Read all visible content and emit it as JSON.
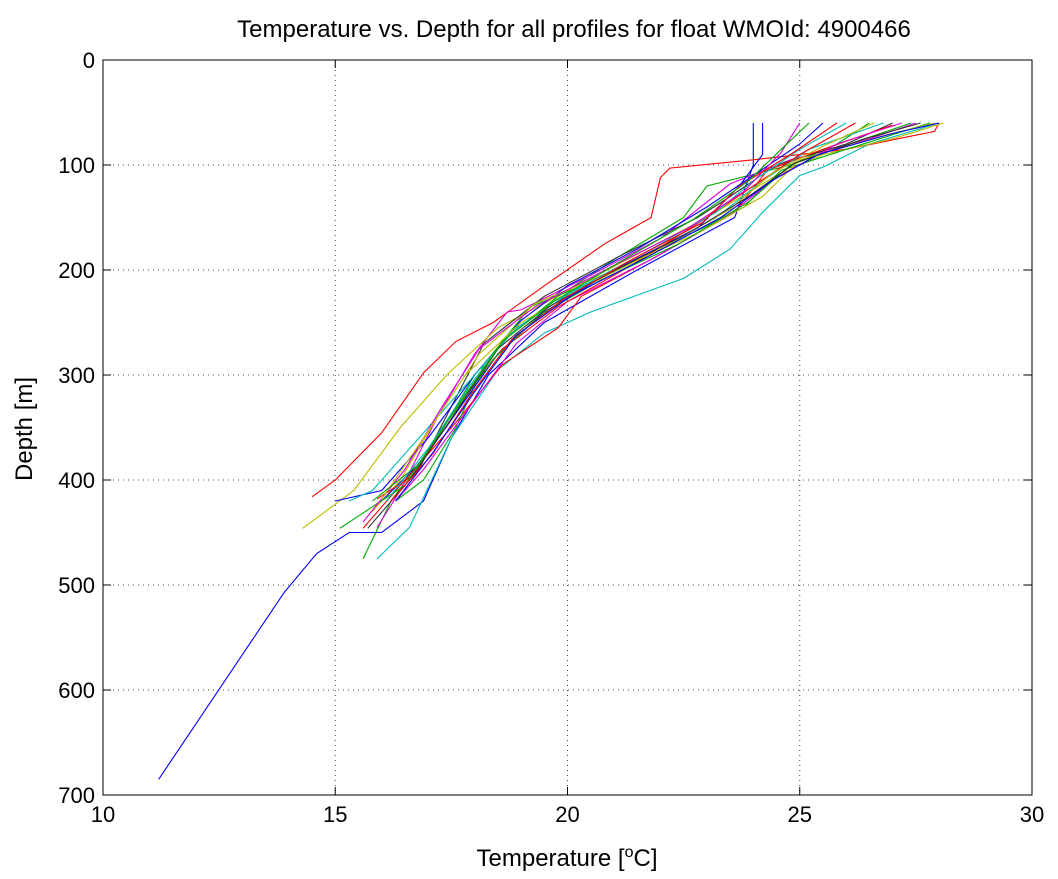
{
  "chart_data": {
    "type": "line",
    "title": "Temperature vs. Depth for all profiles for float WMOId: 4900466",
    "xlabel_prefix": "Temperature [",
    "xlabel_sup": "o",
    "xlabel_suffix": "C]",
    "ylabel": "Depth [m]",
    "xlim": [
      10,
      30
    ],
    "ylim": [
      0,
      700
    ],
    "y_reversed": true,
    "xticks": [
      10,
      15,
      20,
      25,
      30
    ],
    "yticks": [
      0,
      100,
      200,
      300,
      400,
      500,
      600,
      700
    ],
    "grid": true,
    "legend": "none",
    "series": [
      {
        "color": "#0000ff",
        "points": [
          [
            24.0,
            60
          ],
          [
            24.0,
            100
          ],
          [
            23.6,
            150
          ],
          [
            21.5,
            200
          ],
          [
            19.5,
            250
          ],
          [
            18.3,
            300
          ],
          [
            17.5,
            360
          ],
          [
            16.9,
            420
          ],
          [
            16.0,
            450
          ],
          [
            15.3,
            450
          ],
          [
            14.6,
            470
          ],
          [
            13.9,
            507
          ],
          [
            11.2,
            685
          ]
        ]
      },
      {
        "color": "#ff0000",
        "points": [
          [
            28.0,
            60
          ],
          [
            27.9,
            68
          ],
          [
            26.0,
            85
          ],
          [
            24.0,
            95
          ],
          [
            22.2,
            103
          ],
          [
            22.0,
            112
          ],
          [
            21.8,
            150
          ],
          [
            20.8,
            175
          ],
          [
            19.5,
            215
          ],
          [
            18.4,
            250
          ],
          [
            17.6,
            268
          ],
          [
            16.9,
            298
          ],
          [
            16.0,
            355
          ],
          [
            15.0,
            400
          ],
          [
            14.5,
            416
          ]
        ]
      },
      {
        "color": "#00aa00",
        "points": [
          [
            26.5,
            60
          ],
          [
            25.8,
            80
          ],
          [
            24.8,
            100
          ],
          [
            23.0,
            120
          ],
          [
            22.5,
            150
          ],
          [
            21.0,
            190
          ],
          [
            19.8,
            225
          ],
          [
            18.8,
            260
          ],
          [
            18.0,
            300
          ],
          [
            17.2,
            360
          ],
          [
            16.2,
            420
          ],
          [
            15.6,
            475
          ]
        ]
      },
      {
        "color": "#00bbbb",
        "points": [
          [
            28.0,
            60
          ],
          [
            26.5,
            80
          ],
          [
            25.5,
            102
          ],
          [
            25.0,
            110
          ],
          [
            24.2,
            145
          ],
          [
            23.5,
            180
          ],
          [
            22.5,
            208
          ],
          [
            20.5,
            240
          ],
          [
            19.5,
            260
          ],
          [
            18.5,
            295
          ],
          [
            17.5,
            360
          ],
          [
            16.6,
            445
          ],
          [
            15.9,
            475
          ]
        ]
      },
      {
        "color": "#dd00dd",
        "points": [
          [
            27.5,
            60
          ],
          [
            26.5,
            75
          ],
          [
            24.8,
            95
          ],
          [
            23.5,
            118
          ],
          [
            22.0,
            170
          ],
          [
            20.5,
            205
          ],
          [
            19.0,
            238
          ],
          [
            18.7,
            240
          ],
          [
            18.0,
            280
          ],
          [
            17.2,
            340
          ],
          [
            16.4,
            410
          ],
          [
            15.9,
            445
          ]
        ]
      },
      {
        "color": "#bbbb00",
        "points": [
          [
            28.1,
            60
          ],
          [
            27.0,
            75
          ],
          [
            25.5,
            90
          ],
          [
            24.5,
            110
          ],
          [
            23.0,
            150
          ],
          [
            21.5,
            185
          ],
          [
            20.0,
            220
          ],
          [
            18.5,
            255
          ],
          [
            17.4,
            300
          ],
          [
            16.4,
            350
          ],
          [
            15.4,
            410
          ],
          [
            14.3,
            446
          ]
        ]
      },
      {
        "color": "#333333",
        "points": [
          [
            27.0,
            60
          ],
          [
            26.0,
            80
          ],
          [
            24.5,
            100
          ],
          [
            23.5,
            130
          ],
          [
            22.8,
            150
          ],
          [
            21.2,
            185
          ],
          [
            19.5,
            225
          ],
          [
            18.2,
            270
          ],
          [
            17.5,
            330
          ],
          [
            16.8,
            390
          ],
          [
            16.2,
            420
          ]
        ]
      },
      {
        "color": "#0000ff",
        "points": [
          [
            25.5,
            60
          ],
          [
            25.0,
            80
          ],
          [
            24.0,
            110
          ],
          [
            23.0,
            140
          ],
          [
            21.5,
            180
          ],
          [
            20.0,
            215
          ],
          [
            19.0,
            248
          ],
          [
            18.0,
            300
          ],
          [
            17.0,
            360
          ],
          [
            16.0,
            410
          ],
          [
            15.0,
            420
          ]
        ]
      },
      {
        "color": "#ff0000",
        "points": [
          [
            27.0,
            62
          ],
          [
            25.5,
            85
          ],
          [
            24.3,
            105
          ],
          [
            23.6,
            145
          ],
          [
            21.8,
            190
          ],
          [
            20.3,
            225
          ],
          [
            19.8,
            255
          ],
          [
            18.6,
            290
          ],
          [
            17.6,
            345
          ],
          [
            16.5,
            400
          ],
          [
            15.6,
            446
          ]
        ]
      },
      {
        "color": "#00aa00",
        "points": [
          [
            27.8,
            60
          ],
          [
            26.0,
            85
          ],
          [
            24.6,
            105
          ],
          [
            23.8,
            140
          ],
          [
            22.0,
            180
          ],
          [
            20.6,
            210
          ],
          [
            19.2,
            235
          ],
          [
            18.2,
            290
          ],
          [
            17.6,
            350
          ],
          [
            16.9,
            400
          ],
          [
            16.3,
            420
          ]
        ]
      },
      {
        "color": "#00bbbb",
        "points": [
          [
            26.8,
            60
          ],
          [
            25.2,
            85
          ],
          [
            24.2,
            115
          ],
          [
            23.2,
            150
          ],
          [
            21.5,
            190
          ],
          [
            19.7,
            230
          ],
          [
            18.8,
            260
          ],
          [
            17.8,
            310
          ],
          [
            16.8,
            360
          ],
          [
            15.8,
            410
          ],
          [
            15.3,
            420
          ]
        ]
      },
      {
        "color": "#dd00dd",
        "points": [
          [
            27.2,
            60
          ],
          [
            25.8,
            80
          ],
          [
            24.5,
            112
          ],
          [
            23.4,
            150
          ],
          [
            21.8,
            190
          ],
          [
            20.0,
            230
          ],
          [
            18.9,
            270
          ],
          [
            17.9,
            330
          ],
          [
            16.9,
            390
          ],
          [
            16.3,
            420
          ]
        ]
      },
      {
        "color": "#bbbb00",
        "points": [
          [
            27.9,
            60
          ],
          [
            26.8,
            72
          ],
          [
            25.0,
            95
          ],
          [
            24.2,
            130
          ],
          [
            22.8,
            165
          ],
          [
            21.0,
            200
          ],
          [
            19.3,
            232
          ],
          [
            18.1,
            280
          ],
          [
            17.2,
            340
          ],
          [
            16.4,
            400
          ],
          [
            15.8,
            430
          ]
        ]
      },
      {
        "color": "#0000ff",
        "points": [
          [
            24.2,
            60
          ],
          [
            24.2,
            90
          ],
          [
            23.7,
            120
          ],
          [
            22.8,
            160
          ],
          [
            21.0,
            200
          ],
          [
            19.5,
            240
          ],
          [
            18.5,
            280
          ],
          [
            17.7,
            330
          ],
          [
            16.9,
            380
          ],
          [
            16.0,
            420
          ]
        ]
      },
      {
        "color": "#ff0000",
        "points": [
          [
            26.2,
            60
          ],
          [
            25.0,
            90
          ],
          [
            24.0,
            120
          ],
          [
            23.0,
            150
          ],
          [
            21.4,
            195
          ],
          [
            19.8,
            235
          ],
          [
            18.6,
            275
          ],
          [
            17.6,
            330
          ],
          [
            16.7,
            395
          ],
          [
            15.9,
            418
          ]
        ]
      },
      {
        "color": "#00aa00",
        "points": [
          [
            27.4,
            60
          ],
          [
            26.2,
            78
          ],
          [
            24.8,
            100
          ],
          [
            23.9,
            135
          ],
          [
            22.4,
            175
          ],
          [
            20.7,
            210
          ],
          [
            19.4,
            243
          ],
          [
            18.4,
            285
          ],
          [
            17.4,
            345
          ],
          [
            16.5,
            405
          ],
          [
            15.1,
            446
          ]
        ]
      },
      {
        "color": "#00bbbb",
        "points": [
          [
            26.0,
            60
          ],
          [
            25.0,
            85
          ],
          [
            24.0,
            115
          ],
          [
            23.2,
            145
          ],
          [
            21.6,
            185
          ],
          [
            20.2,
            218
          ],
          [
            18.8,
            258
          ],
          [
            17.9,
            310
          ],
          [
            17.0,
            370
          ],
          [
            16.1,
            420
          ]
        ]
      },
      {
        "color": "#dd00dd",
        "points": [
          [
            25.0,
            60
          ],
          [
            24.6,
            88
          ],
          [
            23.8,
            125
          ],
          [
            22.6,
            160
          ],
          [
            20.9,
            198
          ],
          [
            19.3,
            235
          ],
          [
            18.1,
            275
          ],
          [
            17.3,
            330
          ],
          [
            16.5,
            390
          ],
          [
            15.6,
            440
          ]
        ]
      },
      {
        "color": "#bbbb00",
        "points": [
          [
            26.6,
            60
          ],
          [
            25.5,
            82
          ],
          [
            24.4,
            108
          ],
          [
            23.5,
            142
          ],
          [
            22.0,
            180
          ],
          [
            20.4,
            215
          ],
          [
            19.0,
            250
          ],
          [
            17.8,
            300
          ],
          [
            16.9,
            360
          ],
          [
            16.0,
            418
          ]
        ]
      },
      {
        "color": "#333333",
        "points": [
          [
            27.6,
            60
          ],
          [
            26.4,
            75
          ],
          [
            24.9,
            98
          ],
          [
            23.9,
            130
          ],
          [
            22.6,
            165
          ],
          [
            20.9,
            203
          ],
          [
            19.6,
            235
          ],
          [
            18.5,
            275
          ],
          [
            17.6,
            335
          ],
          [
            16.6,
            400
          ],
          [
            15.7,
            446
          ]
        ]
      },
      {
        "color": "#ff0000",
        "points": [
          [
            25.8,
            60
          ],
          [
            24.8,
            90
          ],
          [
            23.7,
            120
          ],
          [
            22.9,
            155
          ],
          [
            21.3,
            192
          ],
          [
            19.9,
            228
          ],
          [
            18.8,
            266
          ],
          [
            17.9,
            320
          ],
          [
            17.1,
            375
          ],
          [
            16.2,
            420
          ]
        ]
      },
      {
        "color": "#0000ff",
        "points": [
          [
            28.0,
            60
          ],
          [
            27.0,
            70
          ],
          [
            25.4,
            90
          ],
          [
            24.4,
            115
          ],
          [
            23.3,
            150
          ],
          [
            21.7,
            188
          ],
          [
            20.1,
            224
          ],
          [
            18.9,
            262
          ],
          [
            18.0,
            316
          ],
          [
            17.1,
            374
          ],
          [
            16.3,
            420
          ]
        ]
      },
      {
        "color": "#00aa00",
        "points": [
          [
            25.2,
            60
          ],
          [
            24.6,
            85
          ],
          [
            23.9,
            115
          ],
          [
            22.7,
            152
          ],
          [
            21.1,
            193
          ],
          [
            19.7,
            230
          ],
          [
            18.6,
            268
          ],
          [
            17.7,
            325
          ],
          [
            16.8,
            385
          ],
          [
            15.8,
            420
          ]
        ]
      }
    ]
  }
}
